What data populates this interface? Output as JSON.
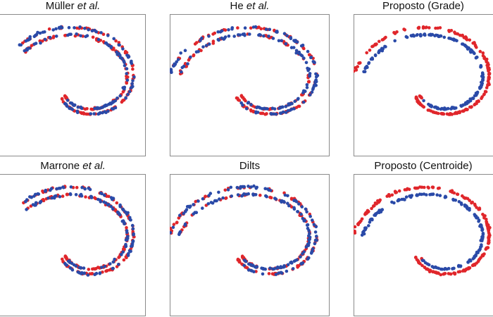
{
  "colors": {
    "class_a": "#e0262b",
    "class_b": "#2a4aa8"
  },
  "chart_data": [
    {
      "type": "scatter",
      "title_main": "Müller",
      "title_italic": "et al.",
      "ordering": "mixed",
      "left_tail": false,
      "series": [
        {
          "name": "",
          "color": "#e0262b"
        },
        {
          "name": "",
          "color": "#2a4aa8"
        }
      ]
    },
    {
      "type": "scatter",
      "title_main": "He",
      "title_italic": "et al.",
      "ordering": "mixed",
      "left_tail": true,
      "series": [
        {
          "name": "",
          "color": "#e0262b"
        },
        {
          "name": "",
          "color": "#2a4aa8"
        }
      ]
    },
    {
      "type": "scatter",
      "title_main": "Proposto (Grade)",
      "title_italic": "",
      "ordering": "outer-red",
      "left_tail": true,
      "series": [
        {
          "name": "",
          "color": "#e0262b"
        },
        {
          "name": "",
          "color": "#2a4aa8"
        }
      ]
    },
    {
      "type": "scatter",
      "title_main": "Marrone",
      "title_italic": "et al.",
      "ordering": "mixed",
      "left_tail": false,
      "series": [
        {
          "name": "",
          "color": "#e0262b"
        },
        {
          "name": "",
          "color": "#2a4aa8"
        }
      ]
    },
    {
      "type": "scatter",
      "title_main": "Dilts",
      "title_italic": "",
      "ordering": "mixed",
      "left_tail": true,
      "series": [
        {
          "name": "",
          "color": "#e0262b"
        },
        {
          "name": "",
          "color": "#2a4aa8"
        }
      ]
    },
    {
      "type": "scatter",
      "title_main": "Proposto (Centroide)",
      "title_italic": "",
      "ordering": "outer-red",
      "left_tail": true,
      "series": [
        {
          "name": "",
          "color": "#e0262b"
        },
        {
          "name": "",
          "color": "#2a4aa8"
        }
      ]
    }
  ]
}
